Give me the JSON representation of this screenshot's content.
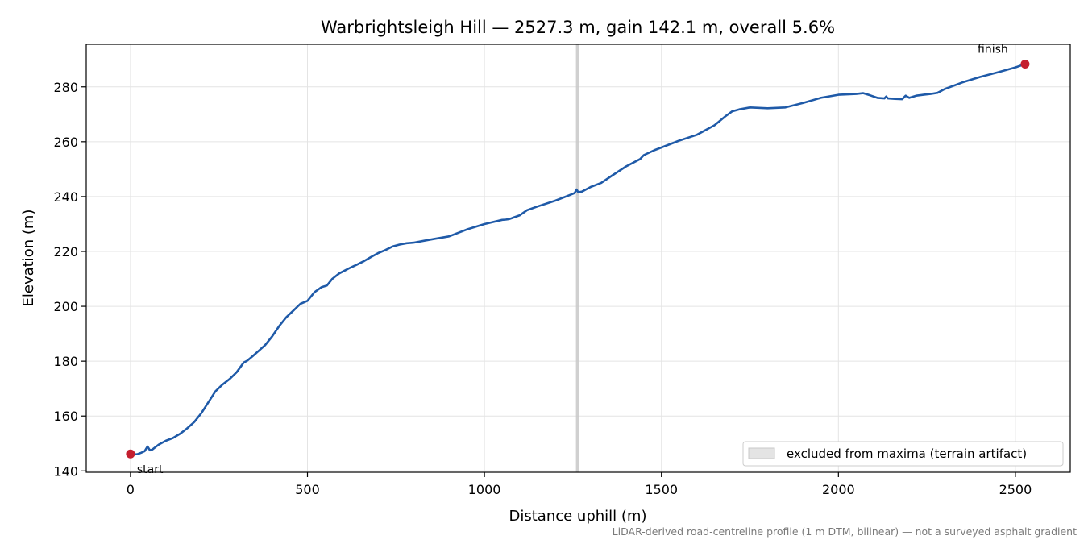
{
  "chart_data": {
    "type": "line",
    "title": "Warbrightsleigh Hill — 2527.3 m, gain 142.1 m, overall 5.6%",
    "xlabel": "Distance uphill (m)",
    "ylabel": "Elevation (m)",
    "xlim": [
      -125,
      2655
    ],
    "ylim": [
      139.5,
      295.5
    ],
    "xticks": [
      0,
      500,
      1000,
      1500,
      2000,
      2500
    ],
    "yticks": [
      140,
      160,
      180,
      200,
      220,
      240,
      260,
      280
    ],
    "grid": true,
    "legend_position": "bottom-right",
    "legend_entries": [
      "excluded from maxima (terrain artifact)"
    ],
    "excluded_band_x": 1263,
    "footnote": "LiDAR-derived road-centreline profile (1 m DTM, bilinear) — not a surveyed asphalt gradient",
    "colors": {
      "line": "#1f5aa8",
      "marker": "#c41e2e",
      "band": "#c8c8c8",
      "grid": "#e4e4e4"
    },
    "annotations": [
      {
        "text": "start",
        "x": 0,
        "y": 146.2
      },
      {
        "text": "finish",
        "x": 2527.3,
        "y": 288.3
      }
    ],
    "series": [
      {
        "x": [
          0,
          10,
          20,
          30,
          40,
          48,
          55,
          62,
          70,
          80,
          100,
          120,
          140,
          160,
          180,
          200,
          220,
          240,
          260,
          280,
          300,
          320,
          330,
          345,
          360,
          380,
          400,
          420,
          440,
          460,
          480,
          500,
          520,
          540,
          555,
          570,
          590,
          605,
          620,
          640,
          660,
          680,
          700,
          720,
          740,
          760,
          780,
          800,
          830,
          860,
          900,
          950,
          1000,
          1050,
          1060,
          1070,
          1100,
          1120,
          1150,
          1200,
          1240,
          1255,
          1260,
          1265,
          1275,
          1300,
          1330,
          1360,
          1400,
          1440,
          1450,
          1460,
          1480,
          1500,
          1550,
          1600,
          1650,
          1680,
          1700,
          1720,
          1750,
          1800,
          1850,
          1900,
          1950,
          2000,
          2050,
          2070,
          2090,
          2110,
          2130,
          2135,
          2140,
          2160,
          2180,
          2190,
          2200,
          2220,
          2240,
          2260,
          2280,
          2300,
          2350,
          2400,
          2450,
          2500,
          2527.3
        ],
        "y": [
          146.2,
          146.0,
          146.1,
          146.6,
          147.2,
          148.9,
          147.5,
          147.8,
          148.6,
          149.6,
          151.0,
          152.0,
          153.5,
          155.5,
          157.8,
          161.0,
          165.0,
          169.0,
          171.5,
          173.5,
          176.0,
          179.5,
          180.2,
          181.8,
          183.5,
          185.8,
          189.0,
          192.8,
          196.0,
          198.4,
          200.9,
          202.0,
          205.2,
          207.0,
          207.6,
          210.0,
          212.0,
          213.0,
          214.0,
          215.2,
          216.5,
          218.0,
          219.4,
          220.5,
          221.8,
          222.5,
          223.0,
          223.2,
          223.9,
          224.6,
          225.5,
          228.0,
          230.0,
          231.5,
          231.6,
          231.8,
          233.2,
          235.0,
          236.4,
          238.5,
          240.5,
          241.3,
          242.6,
          241.6,
          241.8,
          243.5,
          245.0,
          247.6,
          251.0,
          253.7,
          255.1,
          255.7,
          256.9,
          257.9,
          260.4,
          262.5,
          266.0,
          269.2,
          271.1,
          271.8,
          272.5,
          272.2,
          272.5,
          274.1,
          276.0,
          277.1,
          277.4,
          277.7,
          276.9,
          276.0,
          275.8,
          276.5,
          275.8,
          275.6,
          275.5,
          276.8,
          276.0,
          276.8,
          277.1,
          277.4,
          277.8,
          279.2,
          281.6,
          283.6,
          285.3,
          287.1,
          288.3
        ]
      }
    ]
  }
}
